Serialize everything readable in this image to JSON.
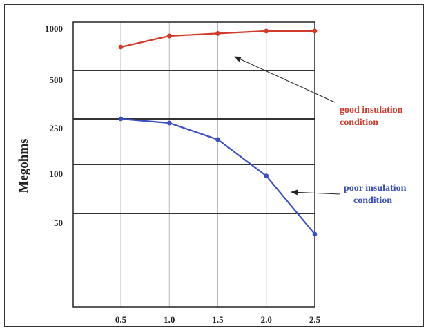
{
  "chart_data": {
    "type": "line",
    "title": "",
    "xlabel": "",
    "ylabel": "Megohms",
    "x": [
      0.5,
      1.0,
      1.5,
      2.0,
      2.5
    ],
    "x_tick_labels": [
      "0.5",
      "1.0",
      "1.5",
      "2.0",
      "2.5"
    ],
    "y_scale": "log",
    "y_ticks": [
      1000,
      500,
      250,
      100,
      50
    ],
    "y_tick_labels": [
      "1000",
      "500",
      "250",
      "100",
      "50"
    ],
    "grid": true,
    "series": [
      {
        "name": "",
        "color": "#d23a2a",
        "values": [
          700,
          820,
          850,
          880,
          880
        ],
        "annotation": [
          "good insulation",
          "condition"
        ]
      },
      {
        "name": "",
        "color": "#3b4fc0",
        "values": [
          250,
          230,
          165,
          85,
          35
        ],
        "annotation": [
          "poor insulation",
          "condition"
        ]
      }
    ]
  }
}
